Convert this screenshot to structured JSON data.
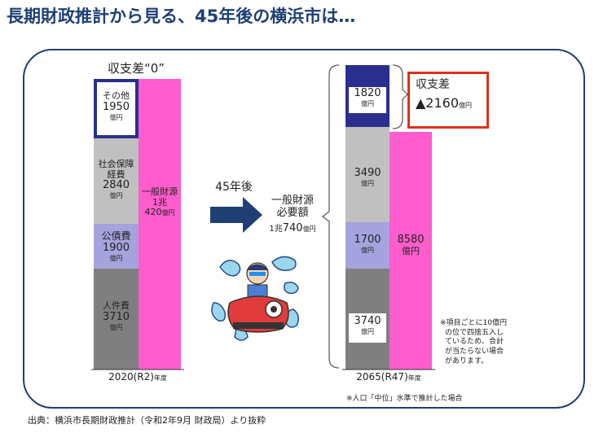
{
  "title": "長期財政推計から見る、45年後の横浜市は…",
  "source": "出典：横浜市長期財政推計（令和2年9月 財政局）より抜粋",
  "left": {
    "heading": "収支差“0”",
    "year_main": "2020(R2)",
    "year_suffix": "年度",
    "blocks": {
      "other": {
        "name": "その他",
        "value": "1950",
        "unit": "億円"
      },
      "social": {
        "name1": "社会保障",
        "name2": "経費",
        "value": "2840",
        "unit": "億円"
      },
      "debt": {
        "name": "公債費",
        "value": "1900",
        "unit": "億円"
      },
      "personnel": {
        "name": "人件費",
        "value": "3710",
        "unit": "億円"
      }
    },
    "revenue": {
      "line1": "一般財源",
      "line2": "1兆",
      "line3": "420",
      "unit": "億円"
    }
  },
  "arrow": {
    "label": "45年後"
  },
  "middle": {
    "line1": "一般財源",
    "line2": "必要額",
    "value_a": "1兆",
    "value_b": "740",
    "unit": "億円"
  },
  "right": {
    "year_main": "2065(R47)",
    "year_suffix": "年度",
    "blocks": {
      "top": {
        "value": "1820",
        "unit": "億円"
      },
      "social": {
        "value": "3490",
        "unit": "億円"
      },
      "debt": {
        "value": "1700",
        "unit": "億円"
      },
      "personnel": {
        "value": "3740",
        "unit": "億円"
      }
    },
    "revenue": {
      "value": "8580",
      "unit": "億円"
    },
    "callout": {
      "label": "収支差",
      "value": "▲2160",
      "unit": "億円"
    }
  },
  "notes": {
    "rounding": [
      "※項目ごとに10億円",
      "の位で四捨五入し",
      "ているため、合計",
      "が当たらない場合",
      "があります。"
    ],
    "population": "※人口「中位」水準で推計した場合"
  },
  "colors": {
    "navy": "#2a2f8f",
    "gray_light": "#c0c0c0",
    "lavender": "#a5a3dd",
    "gray_dark": "#7f7f7f",
    "pink": "#ff5ccd",
    "arrow": "#1f3f73",
    "callout_border": "#e0301e"
  },
  "chart_data": {
    "type": "bar",
    "title": "長期財政推計から見る、45年後の横浜市は…",
    "categories": [
      "2020(R2)年度",
      "2065(R47)年度"
    ],
    "series": [
      {
        "name": "人件費",
        "values": [
          3710,
          3740
        ]
      },
      {
        "name": "公債費",
        "values": [
          1900,
          1700
        ]
      },
      {
        "name": "社会保障経費",
        "values": [
          2840,
          3490
        ]
      },
      {
        "name": "その他",
        "values": [
          1950,
          1820
        ]
      },
      {
        "name": "一般財源",
        "values": [
          10420,
          8580
        ]
      }
    ],
    "balance": [
      0,
      -2160
    ],
    "unit": "億円"
  }
}
